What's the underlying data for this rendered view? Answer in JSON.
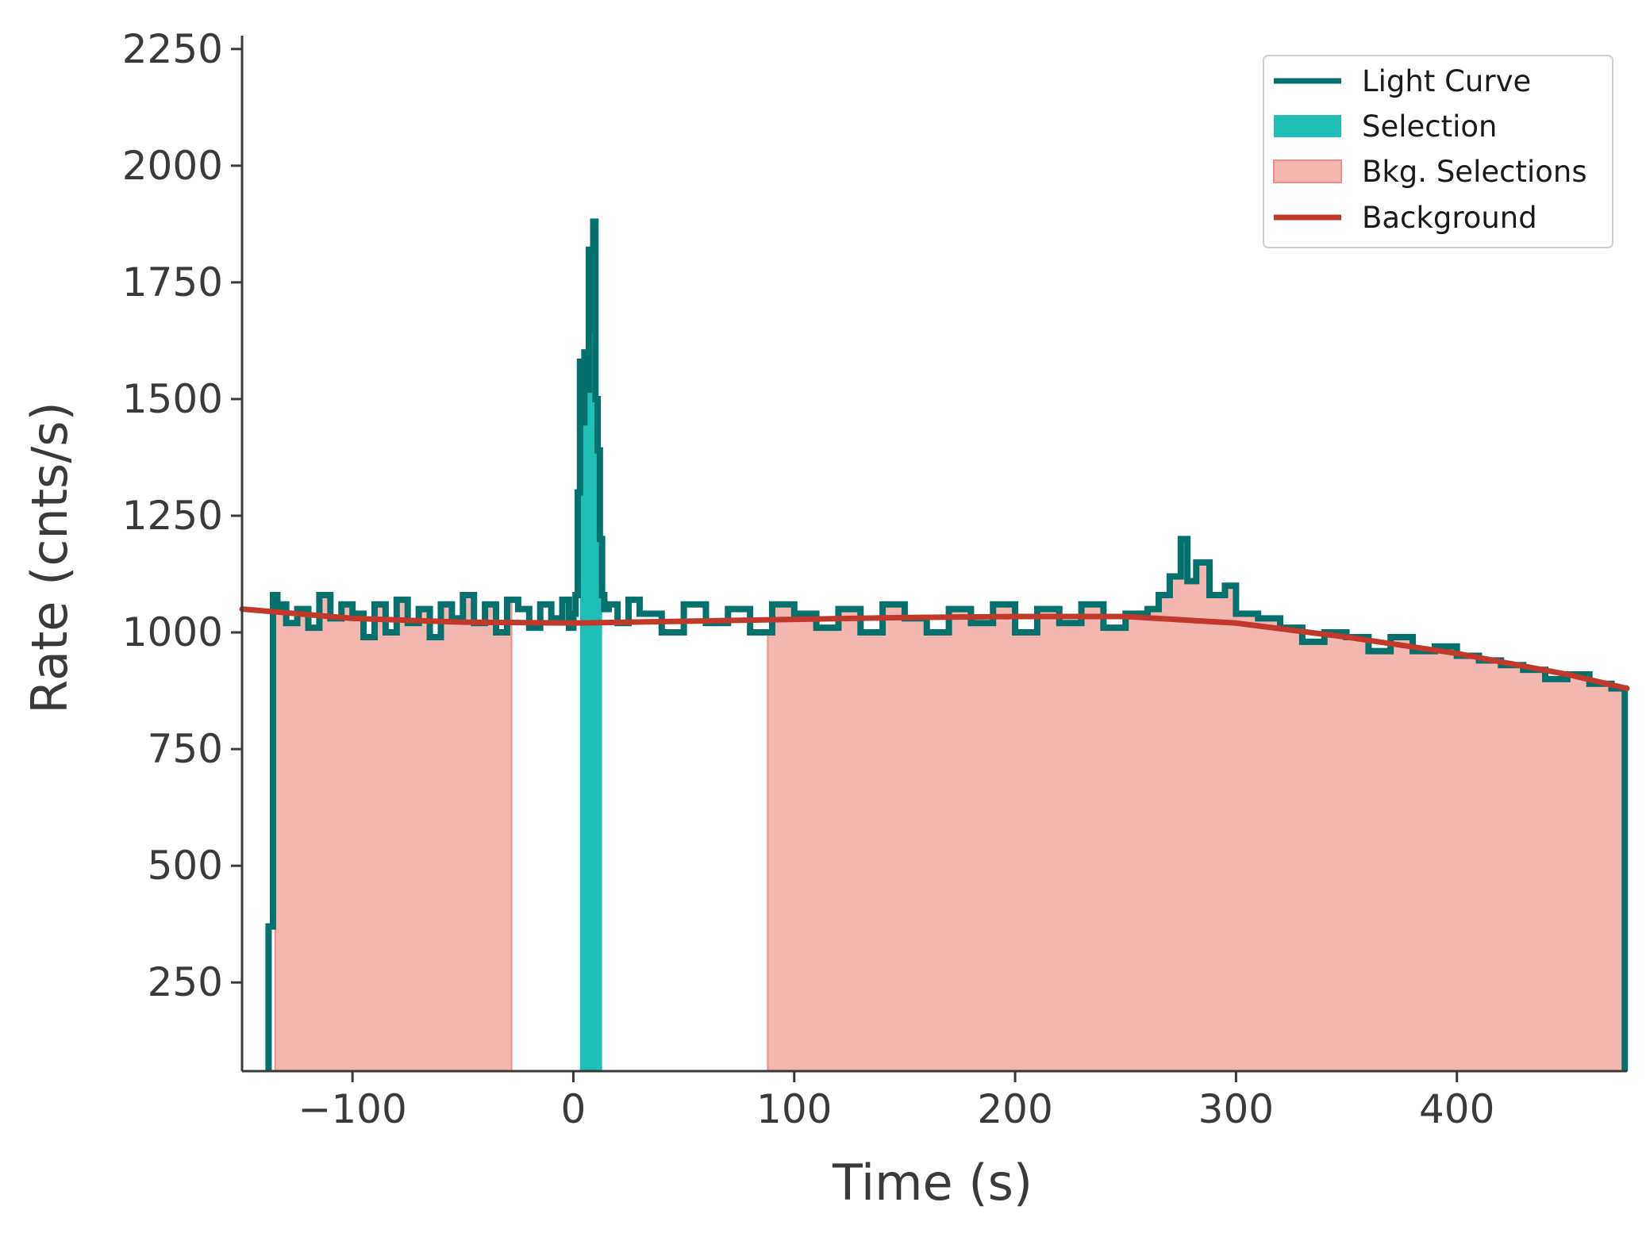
{
  "chart_data": {
    "type": "line",
    "xlabel": "Time (s)",
    "ylabel": "Rate (cnts/s)",
    "xlim": [
      -150,
      477
    ],
    "ylim": [
      60,
      2270
    ],
    "xticks": [
      {
        "value": -100,
        "label": "−100"
      },
      {
        "value": 0,
        "label": "0"
      },
      {
        "value": 100,
        "label": "100"
      },
      {
        "value": 200,
        "label": "200"
      },
      {
        "value": 300,
        "label": "300"
      },
      {
        "value": 400,
        "label": "400"
      }
    ],
    "yticks": [
      {
        "value": 250,
        "label": "250"
      },
      {
        "value": 500,
        "label": "500"
      },
      {
        "value": 750,
        "label": "750"
      },
      {
        "value": 1000,
        "label": "1000"
      },
      {
        "value": 1250,
        "label": "1250"
      },
      {
        "value": 1500,
        "label": "1500"
      },
      {
        "value": 1750,
        "label": "1750"
      },
      {
        "value": 2000,
        "label": "2000"
      },
      {
        "value": 2250,
        "label": "2250"
      }
    ],
    "grid": false,
    "legend_position": "top-right",
    "legend": [
      {
        "label": "Light Curve",
        "kind": "line",
        "color": "#05716c"
      },
      {
        "label": "Selection",
        "kind": "patch",
        "color": "#1fbfb8"
      },
      {
        "label": "Bkg. Selections",
        "kind": "patch",
        "color": "#f4b6b1"
      },
      {
        "label": "Background",
        "kind": "line",
        "color": "#c0392b"
      }
    ],
    "colors": {
      "light_curve": "#05716c",
      "selection": "#1fbfb8",
      "bkg_fill": "#f4b6b1",
      "bkg_edge": "#f08d86",
      "background": "#c0392b",
      "axis": "#3a3a3a"
    },
    "bkg_selections": [
      [
        -135,
        -28
      ],
      [
        88,
        477
      ]
    ],
    "selection": [
      3,
      13
    ],
    "light_curve": {
      "x": [
        -138,
        -136,
        -134,
        -132,
        -130,
        -125,
        -120,
        -115,
        -110,
        -105,
        -100,
        -95,
        -90,
        -85,
        -80,
        -75,
        -70,
        -65,
        -60,
        -55,
        -50,
        -45,
        -40,
        -35,
        -30,
        -25,
        -20,
        -15,
        -10,
        -5,
        -2,
        0,
        1,
        2,
        3,
        4,
        5,
        6,
        7,
        8,
        9,
        10,
        11,
        12,
        13,
        14,
        16,
        20,
        25,
        30,
        40,
        50,
        60,
        70,
        80,
        90,
        100,
        110,
        120,
        130,
        140,
        150,
        160,
        170,
        180,
        190,
        200,
        210,
        220,
        230,
        240,
        250,
        260,
        265,
        270,
        275,
        278,
        282,
        288,
        295,
        300,
        310,
        320,
        330,
        340,
        350,
        360,
        370,
        380,
        390,
        400,
        410,
        420,
        430,
        440,
        450,
        460,
        470,
        476
      ],
      "y": [
        370,
        1080,
        1050,
        1060,
        1020,
        1050,
        1010,
        1080,
        1030,
        1060,
        1040,
        990,
        1060,
        1000,
        1070,
        1020,
        1050,
        990,
        1060,
        1030,
        1080,
        1020,
        1060,
        1000,
        1070,
        1050,
        1010,
        1060,
        1030,
        1070,
        1010,
        1040,
        1080,
        1300,
        1580,
        1450,
        1600,
        1520,
        1820,
        1650,
        1880,
        1500,
        1390,
        1200,
        1080,
        1050,
        1060,
        1020,
        1070,
        1040,
        1000,
        1060,
        1020,
        1050,
        1000,
        1060,
        1040,
        1010,
        1050,
        1000,
        1060,
        1030,
        1000,
        1050,
        1020,
        1060,
        1000,
        1050,
        1020,
        1060,
        1010,
        1040,
        1050,
        1080,
        1120,
        1200,
        1110,
        1150,
        1080,
        1100,
        1040,
        1030,
        1010,
        980,
        1000,
        990,
        960,
        990,
        960,
        970,
        950,
        940,
        930,
        920,
        900,
        910,
        890,
        880,
        860
      ]
    },
    "background": {
      "x": [
        -150,
        -100,
        -50,
        0,
        50,
        100,
        150,
        200,
        250,
        300,
        350,
        400,
        450,
        477
      ],
      "y": [
        1050,
        1030,
        1022,
        1020,
        1024,
        1028,
        1032,
        1034,
        1034,
        1020,
        990,
        955,
        910,
        880
      ]
    }
  }
}
